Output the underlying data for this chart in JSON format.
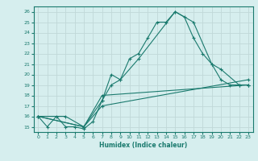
{
  "xlabel": "Humidex (Indice chaleur)",
  "ylabel": "",
  "background_color": "#d6eeee",
  "grid_color": "#c0d8d8",
  "line_color": "#1a7a6e",
  "xlim": [
    -0.5,
    23.5
  ],
  "ylim": [
    14.5,
    26.5
  ],
  "xticks": [
    0,
    1,
    2,
    3,
    4,
    5,
    6,
    7,
    8,
    9,
    10,
    11,
    12,
    13,
    14,
    15,
    16,
    17,
    18,
    19,
    20,
    21,
    22,
    23
  ],
  "yticks": [
    15,
    16,
    17,
    18,
    19,
    20,
    21,
    22,
    23,
    24,
    25,
    26
  ],
  "series": [
    {
      "x": [
        0,
        1,
        2,
        3,
        4,
        5,
        6,
        7,
        8,
        9,
        10,
        11,
        12,
        13,
        14,
        15,
        16,
        17,
        18,
        19,
        20,
        21,
        22,
        23
      ],
      "y": [
        16,
        15,
        16,
        15,
        15,
        14.8,
        15.5,
        17.5,
        19,
        19.5,
        21.5,
        22,
        23.5,
        25,
        25,
        26,
        25.5,
        23.5,
        22,
        21,
        19.5,
        19,
        19,
        19
      ]
    },
    {
      "x": [
        0,
        5,
        7,
        8,
        9,
        11,
        15,
        17,
        19,
        20,
        22,
        23
      ],
      "y": [
        16,
        15,
        17.5,
        20,
        19.5,
        21.5,
        26,
        25,
        21,
        20.5,
        19,
        19
      ]
    },
    {
      "x": [
        0,
        3,
        5,
        7,
        23
      ],
      "y": [
        16,
        16,
        15,
        18,
        19
      ]
    },
    {
      "x": [
        0,
        5,
        7,
        23
      ],
      "y": [
        16,
        15,
        17,
        19.5
      ]
    }
  ]
}
